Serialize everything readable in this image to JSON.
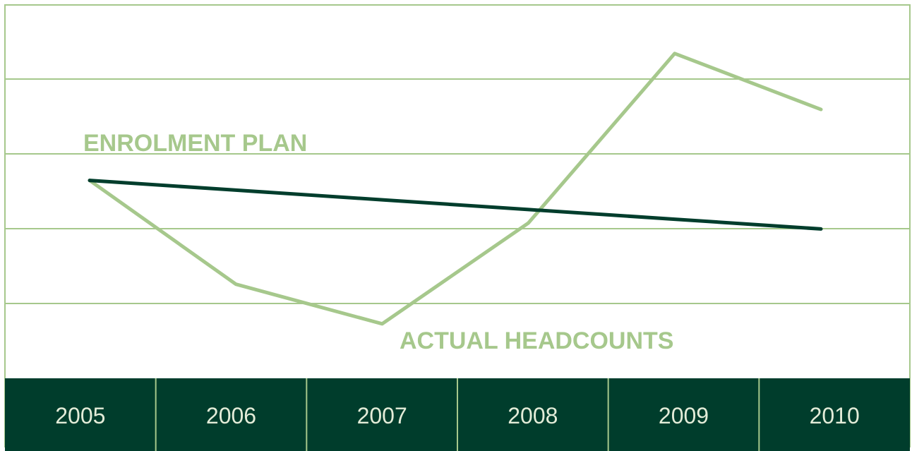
{
  "chart_data": {
    "type": "line",
    "categories": [
      "2005",
      "2006",
      "2007",
      "2008",
      "2009",
      "2010"
    ],
    "ylim": [
      0,
      5
    ],
    "grid": true,
    "title": "",
    "xlabel": "",
    "ylabel": "",
    "series": [
      {
        "name": "ENROLMENT PLAN",
        "color": "#003d2c",
        "values": [
          2.65,
          2.52,
          2.39,
          2.26,
          2.13,
          2.0
        ]
      },
      {
        "name": "ACTUAL HEADCOUNTS",
        "color": "#a6c88c",
        "values": [
          2.65,
          1.26,
          0.73,
          2.08,
          4.35,
          3.6
        ]
      }
    ]
  },
  "colors": {
    "band": "#003d2c",
    "accent": "#a6c88c",
    "tick_text": "#e3ecd8"
  }
}
